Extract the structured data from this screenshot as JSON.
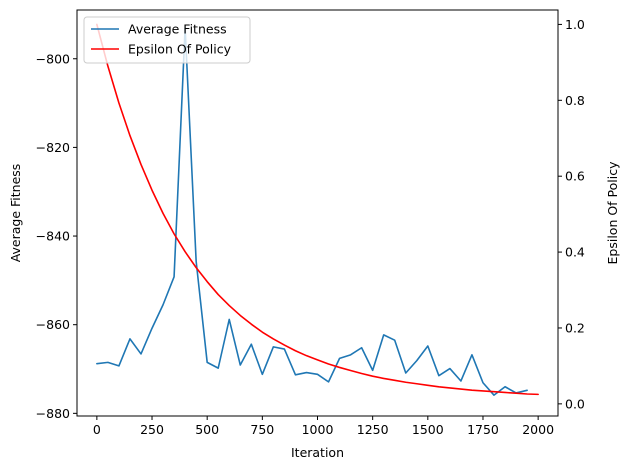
{
  "chart_data": {
    "type": "line",
    "xlabel": "Iteration",
    "ylabel_left": "Average Fitness",
    "ylabel_right": "Epsilon Of Policy",
    "xlim": [
      -90,
      2090
    ],
    "ylim_left": [
      -880.6,
      -789
    ],
    "ylim_right": [
      -0.032,
      1.038
    ],
    "xticks": [
      0,
      250,
      500,
      750,
      1000,
      1250,
      1500,
      1750,
      2000
    ],
    "yticks_left": [
      -880,
      -860,
      -840,
      -820,
      -800
    ],
    "yticks_right": [
      0.0,
      0.2,
      0.4,
      0.6,
      0.8,
      1.0
    ],
    "grid": false,
    "legend_position": "top-left",
    "series": [
      {
        "name": "Average Fitness",
        "axis": "left",
        "color": "#1f77b4",
        "x": [
          0,
          50,
          100,
          150,
          200,
          250,
          300,
          350,
          400,
          450,
          500,
          550,
          600,
          650,
          700,
          750,
          800,
          850,
          900,
          950,
          1000,
          1050,
          1100,
          1150,
          1200,
          1250,
          1300,
          1350,
          1400,
          1450,
          1500,
          1550,
          1600,
          1650,
          1700,
          1750,
          1800,
          1850,
          1900,
          1950
        ],
        "y": [
          -868.8,
          -868.5,
          -869.3,
          -863.2,
          -866.6,
          -860.8,
          -855.5,
          -849.2,
          -793.0,
          -845.7,
          -868.5,
          -869.8,
          -858.8,
          -869.1,
          -864.4,
          -871.2,
          -865.0,
          -865.5,
          -871.3,
          -870.8,
          -871.2,
          -872.9,
          -867.6,
          -866.8,
          -865.2,
          -870.3,
          -862.3,
          -863.5,
          -870.9,
          -868.1,
          -864.8,
          -871.5,
          -869.9,
          -872.7,
          -866.8,
          -873.1,
          -875.9,
          -874.0,
          -875.4,
          -874.8
        ]
      },
      {
        "name": "Epsilon Of Policy",
        "axis": "right",
        "color": "#ff0000",
        "x": [
          0,
          50,
          100,
          150,
          200,
          250,
          300,
          350,
          400,
          450,
          500,
          550,
          600,
          650,
          700,
          750,
          800,
          850,
          900,
          950,
          1000,
          1050,
          1100,
          1150,
          1200,
          1250,
          1300,
          1350,
          1400,
          1450,
          1500,
          1550,
          1600,
          1650,
          1700,
          1750,
          1800,
          1850,
          1900,
          1950,
          2000
        ],
        "y": [
          1.0,
          0.89,
          0.793,
          0.707,
          0.631,
          0.563,
          0.502,
          0.448,
          0.401,
          0.359,
          0.322,
          0.288,
          0.259,
          0.233,
          0.21,
          0.189,
          0.171,
          0.155,
          0.14,
          0.127,
          0.116,
          0.105,
          0.096,
          0.088,
          0.08,
          0.073,
          0.067,
          0.062,
          0.057,
          0.053,
          0.049,
          0.045,
          0.042,
          0.039,
          0.036,
          0.034,
          0.032,
          0.03,
          0.028,
          0.026,
          0.025
        ]
      }
    ]
  }
}
